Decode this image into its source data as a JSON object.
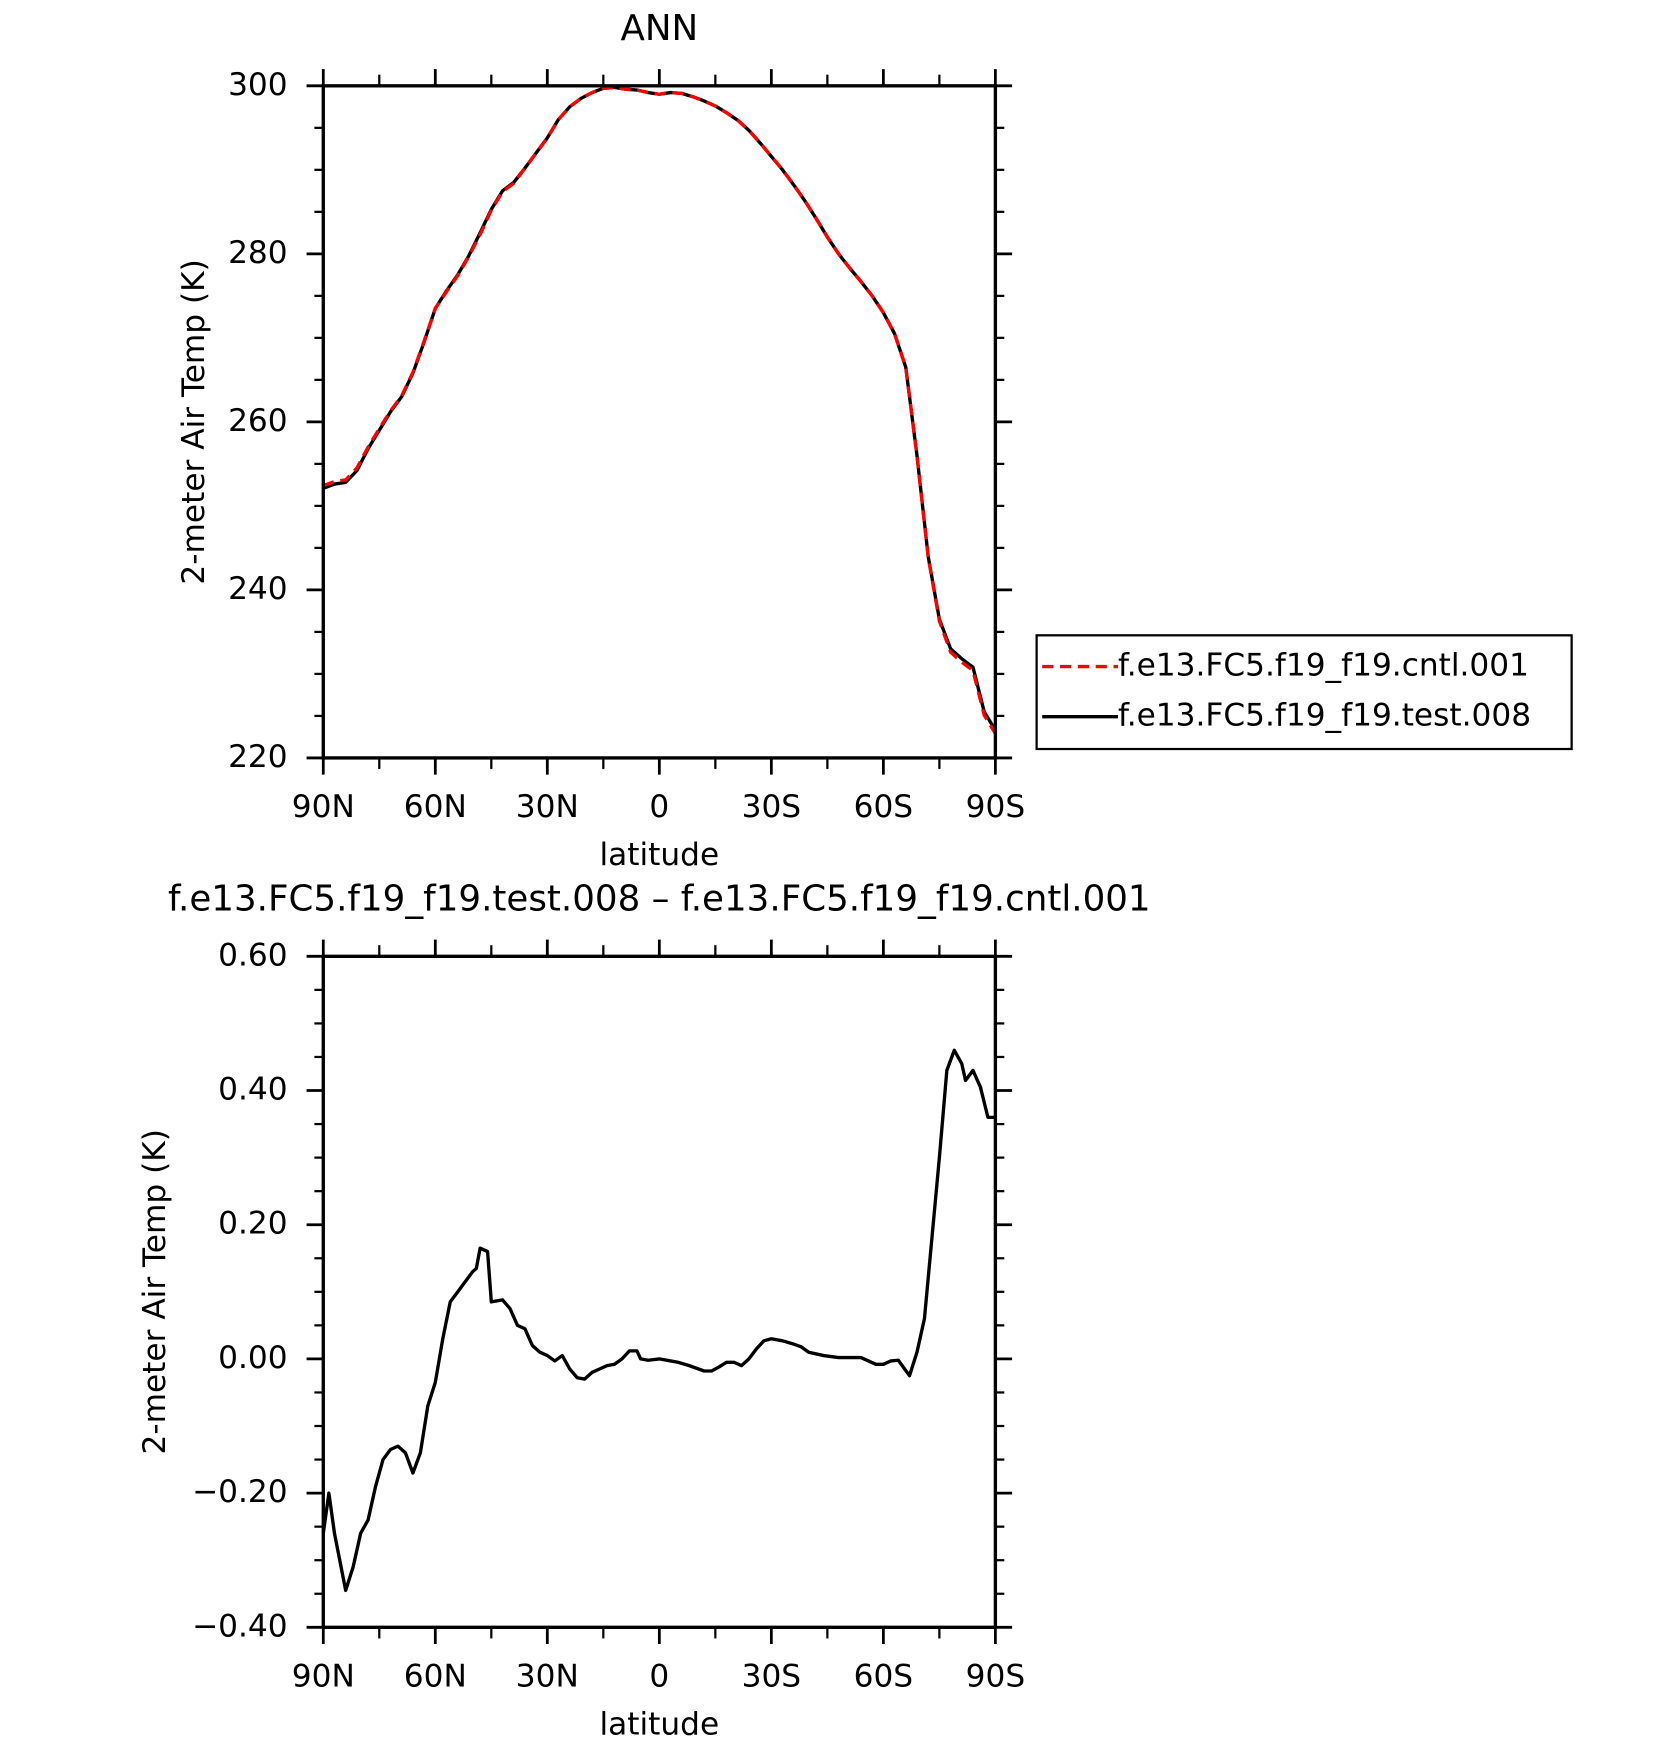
{
  "chart_data": [
    {
      "type": "line",
      "title": "ANN",
      "x_label": "latitude",
      "y_label": "2-meter Air Temp (K)",
      "x": [
        90,
        87,
        84,
        81,
        78,
        75,
        72,
        69,
        66,
        63,
        60,
        57,
        54,
        51,
        48,
        45,
        42,
        39,
        36,
        33,
        30,
        27,
        24,
        21,
        18,
        15,
        12,
        9,
        6,
        3,
        0,
        -3,
        -6,
        -9,
        -12,
        -15,
        -18,
        -21,
        -24,
        -27,
        -30,
        -33,
        -36,
        -39,
        -42,
        -45,
        -48,
        -51,
        -54,
        -57,
        -60,
        -63,
        -66,
        -69,
        -72,
        -75,
        -78,
        -81,
        -84,
        -87,
        -90
      ],
      "series": [
        {
          "name": "f.e13.FC5.f19_f19.cntl.001",
          "color": "#ff0000",
          "linestyle": "dashed",
          "values": [
            252.4,
            252.9,
            253.1,
            254.5,
            257.0,
            259.2,
            261.3,
            263.1,
            265.9,
            269.6,
            273.5,
            275.5,
            277.4,
            279.7,
            282.3,
            285.2,
            287.4,
            288.4,
            290.2,
            292.0,
            293.8,
            296.0,
            297.5,
            298.5,
            299.2,
            299.7,
            299.8,
            299.6,
            299.5,
            299.2,
            299.0,
            299.2,
            299.1,
            298.7,
            298.2,
            297.6,
            296.8,
            295.9,
            294.7,
            293.2,
            291.6,
            290.0,
            288.2,
            286.3,
            284.2,
            282.0,
            280.0,
            278.3,
            276.7,
            275.0,
            273.0,
            270.5,
            266.5,
            256.0,
            243.9,
            236.3,
            232.6,
            231.4,
            230.4,
            225.1,
            222.9
          ]
        },
        {
          "name": "f.e13.FC5.f19_f19.test.008",
          "color": "#000000",
          "linestyle": "solid",
          "values": [
            252.1,
            252.6,
            252.8,
            254.2,
            256.8,
            259.0,
            261.2,
            263.0,
            265.8,
            269.5,
            273.5,
            275.6,
            277.5,
            279.8,
            282.5,
            285.3,
            287.5,
            288.5,
            290.2,
            292.0,
            293.8,
            296.0,
            297.5,
            298.5,
            299.2,
            299.7,
            299.8,
            299.6,
            299.5,
            299.2,
            299.0,
            299.2,
            299.1,
            298.7,
            298.2,
            297.6,
            296.8,
            295.9,
            294.7,
            293.2,
            291.6,
            290.0,
            288.2,
            286.3,
            284.2,
            282.0,
            280.0,
            278.3,
            276.7,
            275.0,
            273.0,
            270.5,
            266.5,
            256.0,
            244.0,
            236.5,
            233.0,
            231.8,
            230.8,
            225.5,
            223.3
          ]
        }
      ],
      "xlim": [
        90,
        -90
      ],
      "xticks": [
        {
          "value": 90,
          "label": "90N"
        },
        {
          "value": 60,
          "label": "60N"
        },
        {
          "value": 30,
          "label": "30N"
        },
        0,
        {
          "value": -30,
          "label": "30S"
        },
        {
          "value": -60,
          "label": "60S"
        },
        {
          "value": -90,
          "label": "90S"
        }
      ],
      "ylim": [
        220,
        300
      ],
      "yticks": [
        220,
        240,
        260,
        280,
        300
      ],
      "legend": "right"
    },
    {
      "type": "line",
      "title": "f.e13.FC5.f19_f19.test.008 – f.e13.FC5.f19_f19.cntl.001",
      "x_label": "latitude",
      "y_label": "2-meter Air Temp (K)",
      "x": [
        90,
        88.5,
        87,
        84,
        82,
        80,
        78,
        76,
        74,
        72,
        70,
        68,
        66,
        64,
        62,
        60,
        58,
        56,
        54,
        52,
        50,
        49,
        48,
        46,
        45,
        42,
        40,
        38,
        36,
        34,
        32,
        30,
        28,
        26,
        24,
        22,
        20,
        18,
        16,
        14,
        12,
        10,
        8,
        6,
        5,
        3,
        0,
        -3,
        -5,
        -8,
        -12,
        -14,
        -16,
        -18,
        -20,
        -22,
        -24,
        -26,
        -28,
        -30,
        -33,
        -36,
        -38,
        -40,
        -44,
        -48,
        -54,
        -58,
        -60,
        -62,
        -64,
        -67,
        -69,
        -71,
        -73,
        -75,
        -77,
        -79,
        -81,
        -82,
        -84,
        -86,
        -88,
        -90
      ],
      "values": [
        -0.26,
        -0.2,
        -0.26,
        -0.345,
        -0.31,
        -0.26,
        -0.24,
        -0.19,
        -0.15,
        -0.135,
        -0.13,
        -0.14,
        -0.17,
        -0.14,
        -0.07,
        -0.035,
        0.03,
        0.085,
        0.1,
        0.115,
        0.13,
        0.135,
        0.165,
        0.16,
        0.085,
        0.088,
        0.075,
        0.05,
        0.045,
        0.02,
        0.01,
        0.005,
        -0.003,
        0.005,
        -0.015,
        -0.028,
        -0.03,
        -0.02,
        -0.015,
        -0.01,
        -0.008,
        0.0,
        0.012,
        0.012,
        0.0,
        -0.002,
        0.0,
        -0.003,
        -0.005,
        -0.01,
        -0.018,
        -0.018,
        -0.012,
        -0.005,
        -0.005,
        -0.01,
        0.0,
        0.015,
        0.027,
        0.03,
        0.027,
        0.022,
        0.018,
        0.01,
        0.005,
        0.002,
        0.002,
        -0.008,
        -0.008,
        -0.003,
        -0.002,
        -0.025,
        0.01,
        0.06,
        0.18,
        0.3,
        0.43,
        0.46,
        0.44,
        0.415,
        0.43,
        0.405,
        0.36,
        0.36
      ],
      "color": "#000000",
      "xlim": [
        90,
        -90
      ],
      "xticks": [
        {
          "value": 90,
          "label": "90N"
        },
        {
          "value": 60,
          "label": "60N"
        },
        {
          "value": 30,
          "label": "30N"
        },
        0,
        {
          "value": -30,
          "label": "30S"
        },
        {
          "value": -60,
          "label": "60S"
        },
        {
          "value": -90,
          "label": "90S"
        }
      ],
      "ylim": [
        -0.4,
        0.6
      ],
      "yticks": [
        {
          "value": -0.4,
          "label": "−0.40"
        },
        {
          "value": -0.2,
          "label": "−0.20"
        },
        {
          "value": 0,
          "label": "0.00"
        },
        {
          "value": 0.2,
          "label": "0.20"
        },
        {
          "value": 0.4,
          "label": "0.40"
        },
        {
          "value": 0.6,
          "label": "0.60"
        }
      ]
    }
  ]
}
